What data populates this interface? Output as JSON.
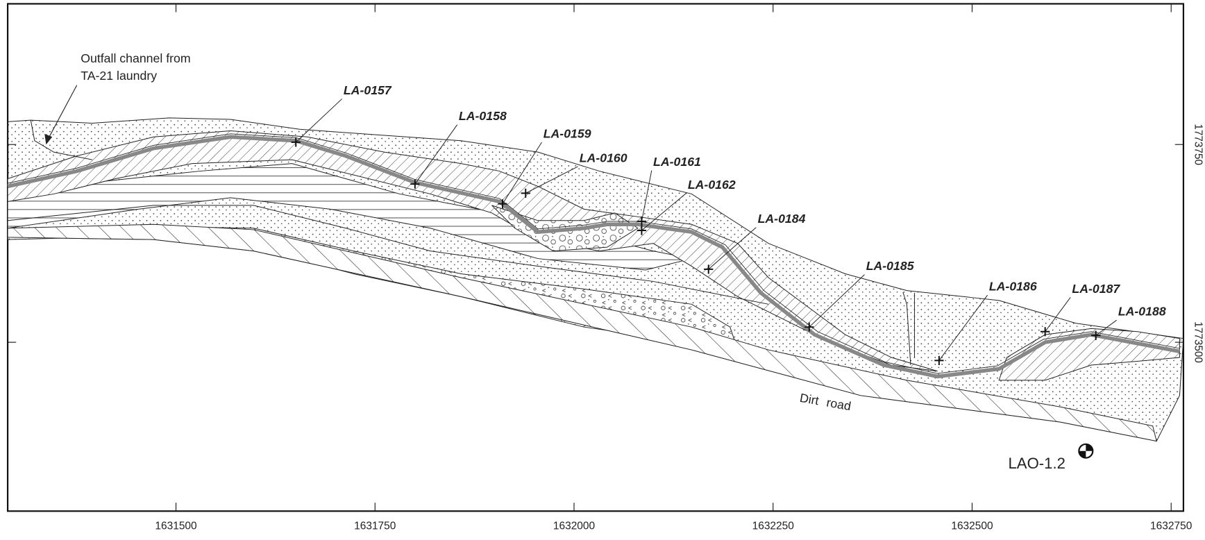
{
  "map": {
    "annotations": {
      "outfall": [
        "Outfall channel from",
        "TA-21 laundry"
      ],
      "road": "Dirt road",
      "well": "LAO-1.2"
    },
    "samples": [
      "LA-0157",
      "LA-0158",
      "LA-0159",
      "LA-0160",
      "LA-0161",
      "LA-0162",
      "LA-0184",
      "LA-0185",
      "LA-0186",
      "LA-0187",
      "LA-0188"
    ],
    "x_ticks": [
      1631500,
      1631750,
      1632000,
      1632250,
      1632500,
      1632750
    ],
    "y_ticks": [
      1773750,
      1773500
    ]
  }
}
